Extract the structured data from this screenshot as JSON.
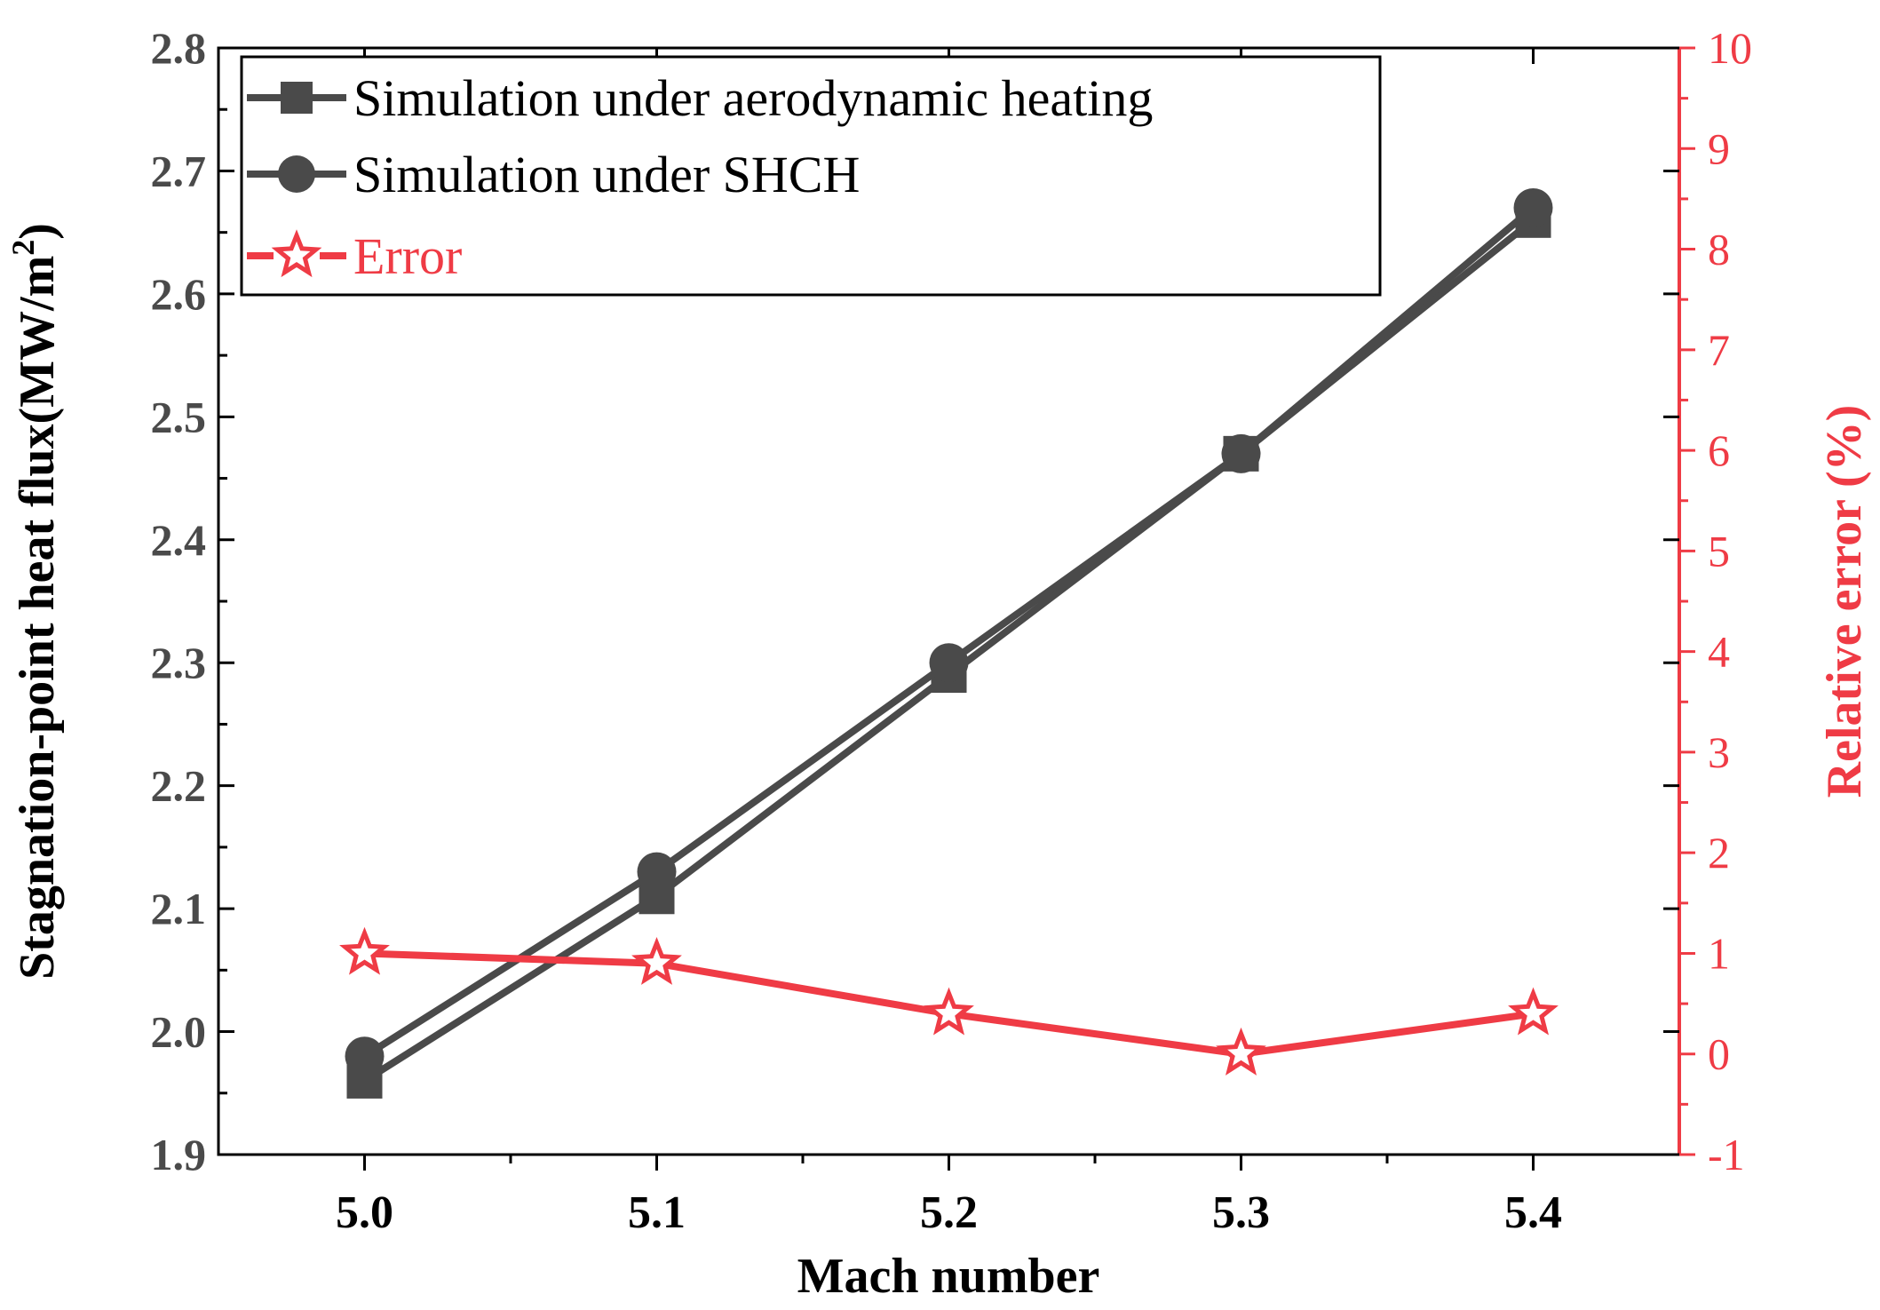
{
  "chart_data": {
    "type": "line",
    "x": [
      5.0,
      5.1,
      5.2,
      5.3,
      5.4
    ],
    "xlabel": "Mach number",
    "x_tick_labels": [
      "5.0",
      "5.1",
      "5.2",
      "5.3",
      "5.4"
    ],
    "xlim": [
      4.95,
      5.45
    ],
    "ylabel_left": "Stagnation-point heat flux(MW/m",
    "ylabel_left_sup": "2",
    "ylabel_left_end": ")",
    "ylim_left": [
      1.9,
      2.8
    ],
    "y_left_ticks": [
      "1.9",
      "2.0",
      "2.1",
      "2.2",
      "2.3",
      "2.4",
      "2.5",
      "2.6",
      "2.7",
      "2.8"
    ],
    "ylabel_right": "Relative error (%)",
    "ylim_right": [
      -1,
      10
    ],
    "y_right_ticks": [
      "-1",
      "0",
      "1",
      "2",
      "3",
      "4",
      "5",
      "6",
      "7",
      "8",
      "9",
      "10"
    ],
    "series": [
      {
        "name": "Simulation under aerodynamic heating",
        "axis": "left",
        "marker": "square",
        "color": "#4a4a4a",
        "values": [
          1.96,
          2.11,
          2.29,
          2.47,
          2.66
        ]
      },
      {
        "name": "Simulation under SHCH",
        "axis": "left",
        "marker": "circle",
        "color": "#4a4a4a",
        "values": [
          1.98,
          2.13,
          2.3,
          2.47,
          2.67
        ]
      },
      {
        "name": "Error",
        "axis": "right",
        "marker": "star",
        "color": "#ef3b45",
        "values": [
          1.0,
          0.9,
          0.4,
          0.0,
          0.4
        ]
      }
    ],
    "legend_position": "top-left"
  },
  "colors": {
    "dark": "#4a4a4a",
    "red": "#ef3b45",
    "frame": "#000000"
  }
}
